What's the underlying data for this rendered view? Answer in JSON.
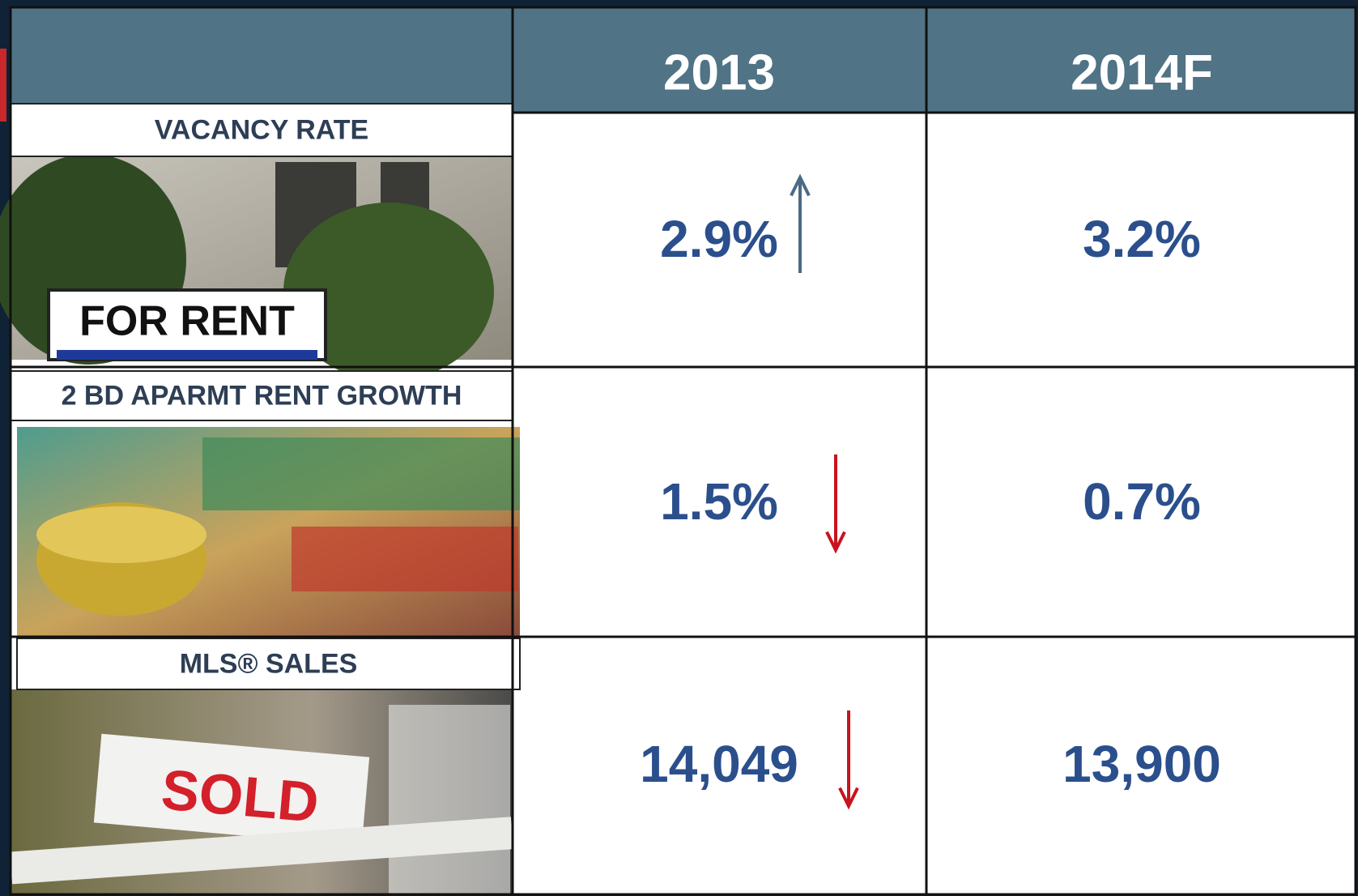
{
  "table": {
    "columns": [
      "2013",
      "2014F"
    ],
    "rows": [
      {
        "label": "VACANCY RATE",
        "cells": [
          "2.9%",
          "3.2%"
        ],
        "trend": "up",
        "sign": "FOR RENT"
      },
      {
        "label": "2 BD APARMT RENT GROWTH",
        "cells": [
          "1.5%",
          "0.7%"
        ],
        "trend": "down"
      },
      {
        "label": "MLS® SALES",
        "cells": [
          "14,049",
          "13,900"
        ],
        "trend": "down",
        "sign": "SOLD"
      }
    ]
  }
}
